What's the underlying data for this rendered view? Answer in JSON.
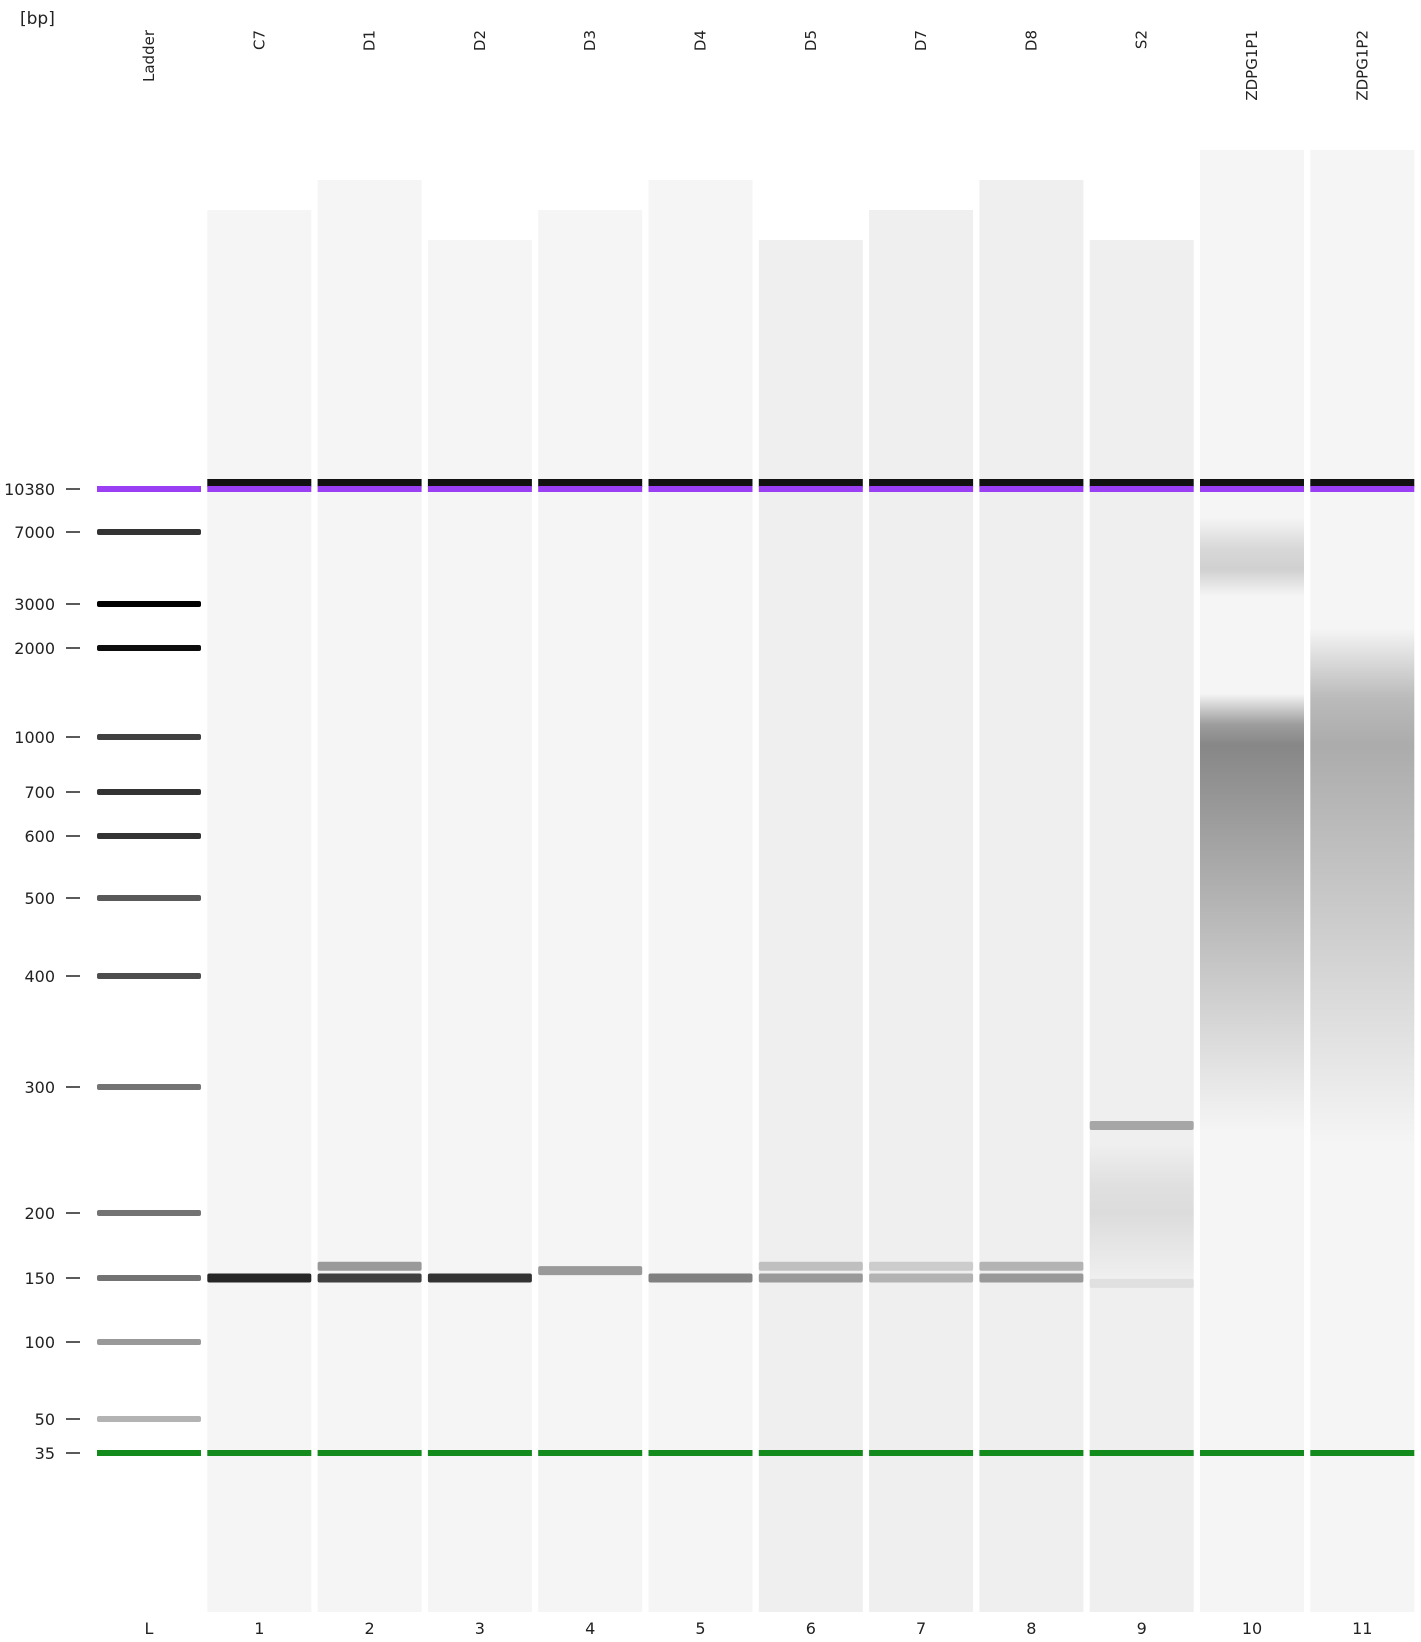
{
  "chart_data": {
    "type": "gel",
    "unit_label": "[bp]",
    "ladder_sizes_bp": [
      10380,
      7000,
      3000,
      2000,
      1000,
      700,
      600,
      500,
      400,
      300,
      200,
      150,
      100,
      50,
      35
    ],
    "upper_marker_bp": 10380,
    "lower_marker_bp": 35,
    "marker_colors": {
      "upper": "#9b3ff5",
      "lower": "#128a1c"
    },
    "lanes": [
      {
        "number": "L",
        "name": "Ladder"
      },
      {
        "number": "1",
        "name": "C7"
      },
      {
        "number": "2",
        "name": "D1"
      },
      {
        "number": "3",
        "name": "D2"
      },
      {
        "number": "4",
        "name": "D3"
      },
      {
        "number": "5",
        "name": "D4"
      },
      {
        "number": "6",
        "name": "D5"
      },
      {
        "number": "7",
        "name": "D7"
      },
      {
        "number": "8",
        "name": "D8"
      },
      {
        "number": "9",
        "name": "S2"
      },
      {
        "number": "10",
        "name": "ZDPG1P1"
      },
      {
        "number": "11",
        "name": "ZDPG1P2"
      }
    ],
    "bands": [
      {
        "lane": 0,
        "bp": 7000,
        "intensity": 0.8
      },
      {
        "lane": 0,
        "bp": 3000,
        "intensity": 1.0
      },
      {
        "lane": 0,
        "bp": 2000,
        "intensity": 0.95
      },
      {
        "lane": 0,
        "bp": 1000,
        "intensity": 0.75
      },
      {
        "lane": 0,
        "bp": 700,
        "intensity": 0.8
      },
      {
        "lane": 0,
        "bp": 600,
        "intensity": 0.8
      },
      {
        "lane": 0,
        "bp": 500,
        "intensity": 0.65
      },
      {
        "lane": 0,
        "bp": 400,
        "intensity": 0.7
      },
      {
        "lane": 0,
        "bp": 300,
        "intensity": 0.55
      },
      {
        "lane": 0,
        "bp": 200,
        "intensity": 0.55
      },
      {
        "lane": 0,
        "bp": 150,
        "intensity": 0.55
      },
      {
        "lane": 0,
        "bp": 100,
        "intensity": 0.4
      },
      {
        "lane": 0,
        "bp": 50,
        "intensity": 0.3
      },
      {
        "lane": 1,
        "bp": 150,
        "intensity": 0.85
      },
      {
        "lane": 2,
        "bp": 158,
        "intensity": 0.4
      },
      {
        "lane": 2,
        "bp": 150,
        "intensity": 0.75
      },
      {
        "lane": 3,
        "bp": 150,
        "intensity": 0.8
      },
      {
        "lane": 4,
        "bp": 155,
        "intensity": 0.4
      },
      {
        "lane": 5,
        "bp": 150,
        "intensity": 0.5
      },
      {
        "lane": 6,
        "bp": 158,
        "intensity": 0.25
      },
      {
        "lane": 6,
        "bp": 150,
        "intensity": 0.4
      },
      {
        "lane": 7,
        "bp": 158,
        "intensity": 0.2
      },
      {
        "lane": 7,
        "bp": 150,
        "intensity": 0.3
      },
      {
        "lane": 8,
        "bp": 158,
        "intensity": 0.3
      },
      {
        "lane": 8,
        "bp": 150,
        "intensity": 0.4
      },
      {
        "lane": 9,
        "bp": 265,
        "intensity": 0.35
      },
      {
        "lane": 9,
        "bp": 145,
        "intensity": 0.12
      }
    ],
    "smears": [
      {
        "lane": 10,
        "from_bp": 1400,
        "peak_bp": 950,
        "to_bp": 260,
        "intensity": 0.45
      },
      {
        "lane": 10,
        "from_bp": 8000,
        "peak_bp": 4500,
        "to_bp": 3300,
        "intensity": 0.15
      },
      {
        "lane": 11,
        "from_bp": 2400,
        "peak_bp": 950,
        "to_bp": 250,
        "intensity": 0.3
      },
      {
        "lane": 9,
        "from_bp": 250,
        "peak_bp": 200,
        "to_bp": 150,
        "intensity": 0.08
      }
    ]
  }
}
